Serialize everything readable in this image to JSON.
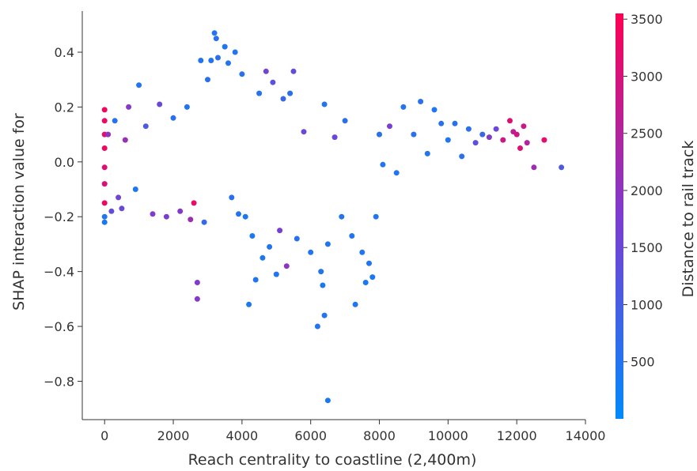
{
  "chart_data": {
    "type": "scatter",
    "title": "",
    "xlabel": "Reach centrality to coastline (2,400m)",
    "ylabel": "SHAP interaction value for",
    "xlim": [
      -650,
      14000
    ],
    "ylim": [
      -0.94,
      0.55
    ],
    "xticks": [
      0,
      2000,
      4000,
      6000,
      8000,
      10000,
      12000,
      14000
    ],
    "xtick_labels": [
      "0",
      "2000",
      "4000",
      "6000",
      "8000",
      "10000",
      "12000",
      "14000"
    ],
    "yticks": [
      0.4,
      0.2,
      0.0,
      -0.2,
      -0.4,
      -0.6,
      -0.8
    ],
    "ytick_labels": [
      "0.4",
      "0.2",
      "0.0",
      "−0.2",
      "−0.4",
      "−0.6",
      "−0.8"
    ],
    "grid": false,
    "colorbar": {
      "label": "Distance to rail track",
      "range": [
        0,
        3550
      ],
      "ticks": [
        500,
        1000,
        1500,
        2000,
        2500,
        3000,
        3500
      ],
      "tick_labels": [
        "500",
        "1000",
        "1500",
        "2000",
        "2500",
        "3000",
        "3500"
      ],
      "low_color": "#008afb",
      "mid_color": "#7d3cd0",
      "high_color": "#ff0052"
    },
    "points": [
      [
        0,
        0.19,
        3400
      ],
      [
        0,
        0.15,
        3300
      ],
      [
        0,
        0.1,
        3200
      ],
      [
        0,
        0.05,
        3300
      ],
      [
        0,
        -0.02,
        3100
      ],
      [
        0,
        -0.08,
        3000
      ],
      [
        0,
        -0.15,
        3300
      ],
      [
        0,
        -0.22,
        400
      ],
      [
        0,
        -0.2,
        500
      ],
      [
        100,
        0.1,
        2000
      ],
      [
        200,
        -0.18,
        1400
      ],
      [
        300,
        0.15,
        500
      ],
      [
        400,
        -0.13,
        1600
      ],
      [
        500,
        -0.17,
        1500
      ],
      [
        600,
        0.08,
        2100
      ],
      [
        700,
        0.2,
        1900
      ],
      [
        900,
        -0.1,
        400
      ],
      [
        1000,
        0.28,
        500
      ],
      [
        1200,
        0.13,
        1100
      ],
      [
        1400,
        -0.19,
        1800
      ],
      [
        1600,
        0.21,
        1500
      ],
      [
        1800,
        -0.2,
        1700
      ],
      [
        2000,
        0.16,
        600
      ],
      [
        2200,
        -0.18,
        1900
      ],
      [
        2400,
        0.2,
        500
      ],
      [
        2500,
        -0.21,
        2200
      ],
      [
        2600,
        -0.15,
        3200
      ],
      [
        2700,
        -0.44,
        1800
      ],
      [
        2700,
        -0.5,
        1900
      ],
      [
        2800,
        0.37,
        500
      ],
      [
        2900,
        -0.22,
        700
      ],
      [
        3000,
        0.3,
        600
      ],
      [
        3100,
        0.37,
        500
      ],
      [
        3200,
        0.47,
        500
      ],
      [
        3250,
        0.45,
        600
      ],
      [
        3300,
        0.38,
        600
      ],
      [
        3500,
        0.42,
        500
      ],
      [
        3600,
        0.36,
        500
      ],
      [
        3800,
        0.4,
        500
      ],
      [
        4000,
        0.32,
        600
      ],
      [
        3700,
        -0.13,
        600
      ],
      [
        3900,
        -0.19,
        500
      ],
      [
        4100,
        -0.2,
        400
      ],
      [
        4200,
        -0.52,
        400
      ],
      [
        4300,
        -0.27,
        400
      ],
      [
        4400,
        -0.43,
        500
      ],
      [
        4500,
        0.25,
        500
      ],
      [
        4600,
        -0.35,
        400
      ],
      [
        4700,
        0.33,
        1600
      ],
      [
        4800,
        -0.31,
        500
      ],
      [
        4900,
        0.29,
        1300
      ],
      [
        5000,
        -0.41,
        500
      ],
      [
        5100,
        -0.25,
        1700
      ],
      [
        5200,
        0.23,
        800
      ],
      [
        5300,
        -0.38,
        2000
      ],
      [
        5400,
        0.25,
        600
      ],
      [
        5500,
        0.33,
        1400
      ],
      [
        5600,
        -0.28,
        600
      ],
      [
        5800,
        0.11,
        1500
      ],
      [
        6000,
        -0.33,
        500
      ],
      [
        6200,
        -0.6,
        500
      ],
      [
        6300,
        -0.4,
        500
      ],
      [
        6350,
        -0.45,
        400
      ],
      [
        6400,
        -0.56,
        500
      ],
      [
        6500,
        -0.87,
        400
      ],
      [
        6400,
        0.21,
        500
      ],
      [
        6500,
        -0.3,
        500
      ],
      [
        6700,
        0.09,
        1500
      ],
      [
        6900,
        -0.2,
        500
      ],
      [
        7000,
        0.15,
        600
      ],
      [
        7200,
        -0.27,
        500
      ],
      [
        7300,
        -0.52,
        400
      ],
      [
        7500,
        -0.33,
        500
      ],
      [
        7600,
        -0.44,
        400
      ],
      [
        7700,
        -0.37,
        500
      ],
      [
        7800,
        -0.42,
        400
      ],
      [
        7900,
        -0.2,
        500
      ],
      [
        8000,
        0.1,
        600
      ],
      [
        8100,
        -0.01,
        500
      ],
      [
        8300,
        0.13,
        1700
      ],
      [
        8500,
        -0.04,
        500
      ],
      [
        8700,
        0.2,
        500
      ],
      [
        9000,
        0.1,
        600
      ],
      [
        9200,
        0.22,
        600
      ],
      [
        9400,
        0.03,
        500
      ],
      [
        9600,
        0.19,
        500
      ],
      [
        9800,
        0.14,
        600
      ],
      [
        10000,
        0.08,
        500
      ],
      [
        10200,
        0.14,
        600
      ],
      [
        10400,
        0.02,
        600
      ],
      [
        10600,
        0.12,
        600
      ],
      [
        10800,
        0.07,
        1300
      ],
      [
        11000,
        0.1,
        800
      ],
      [
        11200,
        0.09,
        1900
      ],
      [
        11400,
        0.12,
        1500
      ],
      [
        11600,
        0.08,
        2800
      ],
      [
        11800,
        0.15,
        3100
      ],
      [
        11900,
        0.11,
        2600
      ],
      [
        12000,
        0.1,
        2900
      ],
      [
        12100,
        0.05,
        3000
      ],
      [
        12200,
        0.13,
        2800
      ],
      [
        12300,
        0.07,
        2500
      ],
      [
        12500,
        -0.02,
        2200
      ],
      [
        12800,
        0.08,
        3200
      ],
      [
        13300,
        -0.02,
        1100
      ]
    ]
  }
}
